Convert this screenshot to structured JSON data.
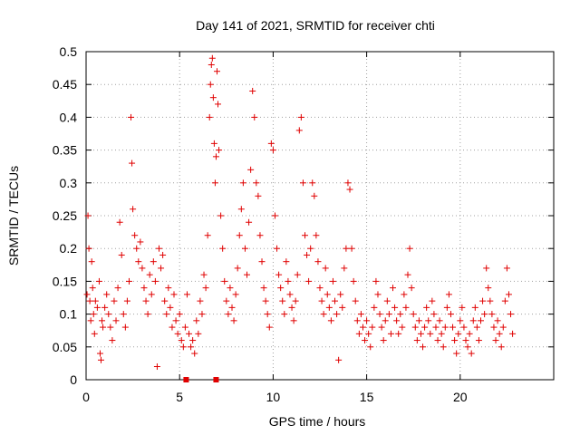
{
  "chart_data": {
    "type": "scatter",
    "title": "Day 141 of 2021, SRMTID for receiver chti",
    "xlabel": "GPS time / hours",
    "ylabel": "SRMTID / TECUs",
    "xlim": [
      0,
      25
    ],
    "ylim": [
      0,
      0.5
    ],
    "xticks": [
      0,
      5,
      10,
      15,
      20
    ],
    "xtick_labels": [
      "0",
      "5",
      "10",
      "15",
      "20"
    ],
    "yticks": [
      0,
      0.05,
      0.1,
      0.15,
      0.2,
      0.25,
      0.3,
      0.35,
      0.4,
      0.45,
      0.5
    ],
    "ytick_labels": [
      "0",
      "0.05",
      "0.1",
      "0.15",
      "0.2",
      "0.25",
      "0.3",
      "0.35",
      "0.4",
      "0.45",
      "0.5"
    ],
    "grid": true,
    "marker": "plus",
    "color": "#e00000",
    "series": [
      {
        "name": "SRMTID",
        "points": [
          [
            0.05,
            0.13
          ],
          [
            0.1,
            0.25
          ],
          [
            0.15,
            0.2
          ],
          [
            0.2,
            0.12
          ],
          [
            0.25,
            0.09
          ],
          [
            0.3,
            0.18
          ],
          [
            0.35,
            0.14
          ],
          [
            0.4,
            0.1
          ],
          [
            0.45,
            0.07
          ],
          [
            0.5,
            0.12
          ],
          [
            0.6,
            0.11
          ],
          [
            0.7,
            0.15
          ],
          [
            0.75,
            0.04
          ],
          [
            0.8,
            0.03
          ],
          [
            0.85,
            0.09
          ],
          [
            0.9,
            0.08
          ],
          [
            1.0,
            0.11
          ],
          [
            1.1,
            0.13
          ],
          [
            1.2,
            0.1
          ],
          [
            1.3,
            0.08
          ],
          [
            1.4,
            0.06
          ],
          [
            1.5,
            0.12
          ],
          [
            1.6,
            0.09
          ],
          [
            1.7,
            0.14
          ],
          [
            1.8,
            0.24
          ],
          [
            1.9,
            0.19
          ],
          [
            2.0,
            0.1
          ],
          [
            2.1,
            0.08
          ],
          [
            2.2,
            0.12
          ],
          [
            2.3,
            0.15
          ],
          [
            2.4,
            0.4
          ],
          [
            2.45,
            0.33
          ],
          [
            2.5,
            0.26
          ],
          [
            2.6,
            0.22
          ],
          [
            2.7,
            0.2
          ],
          [
            2.8,
            0.18
          ],
          [
            2.9,
            0.21
          ],
          [
            3.0,
            0.17
          ],
          [
            3.1,
            0.14
          ],
          [
            3.2,
            0.12
          ],
          [
            3.3,
            0.1
          ],
          [
            3.4,
            0.16
          ],
          [
            3.5,
            0.13
          ],
          [
            3.6,
            0.18
          ],
          [
            3.7,
            0.15
          ],
          [
            3.8,
            0.02
          ],
          [
            3.9,
            0.2
          ],
          [
            4.0,
            0.17
          ],
          [
            4.1,
            0.19
          ],
          [
            4.2,
            0.12
          ],
          [
            4.3,
            0.1
          ],
          [
            4.4,
            0.14
          ],
          [
            4.5,
            0.11
          ],
          [
            4.6,
            0.08
          ],
          [
            4.7,
            0.13
          ],
          [
            4.8,
            0.09
          ],
          [
            4.9,
            0.07
          ],
          [
            5.0,
            0.1
          ],
          [
            5.1,
            0.06
          ],
          [
            5.2,
            0.05
          ],
          [
            5.3,
            0.08
          ],
          [
            5.4,
            0.13
          ],
          [
            5.5,
            0.07
          ],
          [
            5.6,
            0.05
          ],
          [
            5.7,
            0.06
          ],
          [
            5.8,
            0.04
          ],
          [
            5.9,
            0.09
          ],
          [
            6.0,
            0.07
          ],
          [
            6.1,
            0.12
          ],
          [
            6.2,
            0.1
          ],
          [
            6.3,
            0.16
          ],
          [
            6.4,
            0.14
          ],
          [
            6.5,
            0.22
          ],
          [
            6.6,
            0.4
          ],
          [
            6.65,
            0.45
          ],
          [
            6.7,
            0.48
          ],
          [
            6.75,
            0.49
          ],
          [
            6.8,
            0.43
          ],
          [
            6.85,
            0.36
          ],
          [
            6.9,
            0.3
          ],
          [
            6.95,
            0.34
          ],
          [
            7.0,
            0.47
          ],
          [
            7.05,
            0.42
          ],
          [
            7.1,
            0.35
          ],
          [
            7.2,
            0.25
          ],
          [
            7.3,
            0.2
          ],
          [
            7.4,
            0.15
          ],
          [
            7.5,
            0.12
          ],
          [
            7.6,
            0.1
          ],
          [
            7.7,
            0.14
          ],
          [
            7.8,
            0.11
          ],
          [
            7.9,
            0.09
          ],
          [
            8.0,
            0.13
          ],
          [
            8.1,
            0.17
          ],
          [
            8.2,
            0.22
          ],
          [
            8.3,
            0.26
          ],
          [
            8.4,
            0.3
          ],
          [
            8.5,
            0.2
          ],
          [
            8.6,
            0.16
          ],
          [
            8.7,
            0.24
          ],
          [
            8.8,
            0.32
          ],
          [
            8.9,
            0.44
          ],
          [
            9.0,
            0.4
          ],
          [
            9.1,
            0.3
          ],
          [
            9.2,
            0.28
          ],
          [
            9.3,
            0.22
          ],
          [
            9.4,
            0.18
          ],
          [
            9.5,
            0.14
          ],
          [
            9.6,
            0.12
          ],
          [
            9.7,
            0.1
          ],
          [
            9.8,
            0.08
          ],
          [
            9.9,
            0.36
          ],
          [
            10.0,
            0.35
          ],
          [
            10.1,
            0.25
          ],
          [
            10.2,
            0.2
          ],
          [
            10.3,
            0.16
          ],
          [
            10.4,
            0.14
          ],
          [
            10.5,
            0.12
          ],
          [
            10.6,
            0.1
          ],
          [
            10.7,
            0.18
          ],
          [
            10.8,
            0.15
          ],
          [
            10.9,
            0.13
          ],
          [
            11.0,
            0.11
          ],
          [
            11.1,
            0.09
          ],
          [
            11.2,
            0.12
          ],
          [
            11.3,
            0.16
          ],
          [
            11.4,
            0.38
          ],
          [
            11.5,
            0.4
          ],
          [
            11.6,
            0.3
          ],
          [
            11.7,
            0.22
          ],
          [
            11.8,
            0.19
          ],
          [
            11.9,
            0.15
          ],
          [
            12.0,
            0.2
          ],
          [
            12.1,
            0.3
          ],
          [
            12.2,
            0.28
          ],
          [
            12.3,
            0.22
          ],
          [
            12.4,
            0.18
          ],
          [
            12.5,
            0.14
          ],
          [
            12.6,
            0.12
          ],
          [
            12.7,
            0.1
          ],
          [
            12.8,
            0.17
          ],
          [
            12.9,
            0.13
          ],
          [
            13.0,
            0.11
          ],
          [
            13.1,
            0.09
          ],
          [
            13.2,
            0.15
          ],
          [
            13.3,
            0.12
          ],
          [
            13.4,
            0.1
          ],
          [
            13.5,
            0.03
          ],
          [
            13.6,
            0.13
          ],
          [
            13.7,
            0.11
          ],
          [
            13.8,
            0.17
          ],
          [
            13.9,
            0.2
          ],
          [
            14.0,
            0.3
          ],
          [
            14.1,
            0.29
          ],
          [
            14.2,
            0.2
          ],
          [
            14.3,
            0.15
          ],
          [
            14.4,
            0.12
          ],
          [
            14.5,
            0.09
          ],
          [
            14.6,
            0.07
          ],
          [
            14.7,
            0.1
          ],
          [
            14.8,
            0.08
          ],
          [
            14.9,
            0.06
          ],
          [
            15.0,
            0.09
          ],
          [
            15.1,
            0.07
          ],
          [
            15.2,
            0.05
          ],
          [
            15.3,
            0.08
          ],
          [
            15.4,
            0.11
          ],
          [
            15.5,
            0.15
          ],
          [
            15.6,
            0.13
          ],
          [
            15.7,
            0.1
          ],
          [
            15.8,
            0.08
          ],
          [
            15.9,
            0.06
          ],
          [
            16.0,
            0.09
          ],
          [
            16.1,
            0.12
          ],
          [
            16.2,
            0.1
          ],
          [
            16.3,
            0.07
          ],
          [
            16.4,
            0.14
          ],
          [
            16.5,
            0.11
          ],
          [
            16.6,
            0.09
          ],
          [
            16.7,
            0.07
          ],
          [
            16.8,
            0.1
          ],
          [
            16.9,
            0.08
          ],
          [
            17.0,
            0.13
          ],
          [
            17.1,
            0.11
          ],
          [
            17.2,
            0.16
          ],
          [
            17.3,
            0.2
          ],
          [
            17.4,
            0.14
          ],
          [
            17.5,
            0.1
          ],
          [
            17.6,
            0.08
          ],
          [
            17.7,
            0.06
          ],
          [
            17.8,
            0.09
          ],
          [
            17.9,
            0.07
          ],
          [
            18.0,
            0.05
          ],
          [
            18.1,
            0.08
          ],
          [
            18.2,
            0.11
          ],
          [
            18.3,
            0.09
          ],
          [
            18.4,
            0.07
          ],
          [
            18.5,
            0.12
          ],
          [
            18.6,
            0.1
          ],
          [
            18.7,
            0.08
          ],
          [
            18.8,
            0.06
          ],
          [
            18.9,
            0.09
          ],
          [
            19.0,
            0.07
          ],
          [
            19.1,
            0.05
          ],
          [
            19.2,
            0.08
          ],
          [
            19.3,
            0.11
          ],
          [
            19.4,
            0.13
          ],
          [
            19.5,
            0.1
          ],
          [
            19.6,
            0.08
          ],
          [
            19.7,
            0.06
          ],
          [
            19.8,
            0.04
          ],
          [
            19.9,
            0.07
          ],
          [
            20.0,
            0.09
          ],
          [
            20.1,
            0.11
          ],
          [
            20.2,
            0.08
          ],
          [
            20.3,
            0.06
          ],
          [
            20.4,
            0.05
          ],
          [
            20.5,
            0.07
          ],
          [
            20.6,
            0.04
          ],
          [
            20.7,
            0.09
          ],
          [
            20.8,
            0.11
          ],
          [
            20.9,
            0.08
          ],
          [
            21.0,
            0.06
          ],
          [
            21.1,
            0.09
          ],
          [
            21.2,
            0.12
          ],
          [
            21.3,
            0.1
          ],
          [
            21.4,
            0.17
          ],
          [
            21.5,
            0.14
          ],
          [
            21.6,
            0.12
          ],
          [
            21.7,
            0.1
          ],
          [
            21.8,
            0.08
          ],
          [
            21.9,
            0.06
          ],
          [
            22.0,
            0.09
          ],
          [
            22.1,
            0.07
          ],
          [
            22.2,
            0.05
          ],
          [
            22.3,
            0.08
          ],
          [
            22.4,
            0.12
          ],
          [
            22.5,
            0.17
          ],
          [
            22.6,
            0.13
          ],
          [
            22.7,
            0.1
          ],
          [
            22.8,
            0.07
          ]
        ]
      }
    ],
    "zero_markers": [
      5.35,
      6.95
    ]
  }
}
